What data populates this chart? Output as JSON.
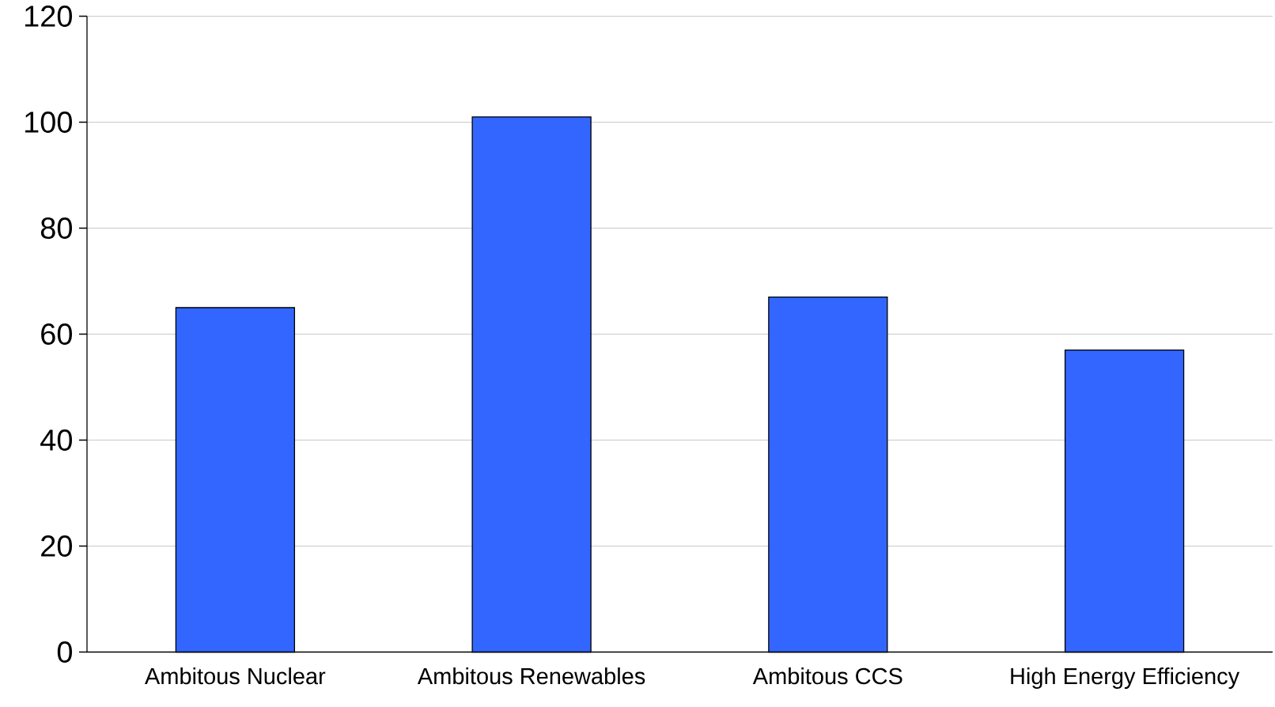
{
  "chart_data": {
    "type": "bar",
    "categories": [
      "Ambitous Nuclear",
      "Ambitous Renewables",
      "Ambitous CCS",
      "High Energy Efficiency"
    ],
    "values": [
      65,
      101,
      67,
      57
    ],
    "color": "#3366ff",
    "ylim": [
      0,
      120
    ],
    "yticks": [
      0,
      20,
      40,
      60,
      80,
      100,
      120
    ],
    "grid": "y"
  }
}
